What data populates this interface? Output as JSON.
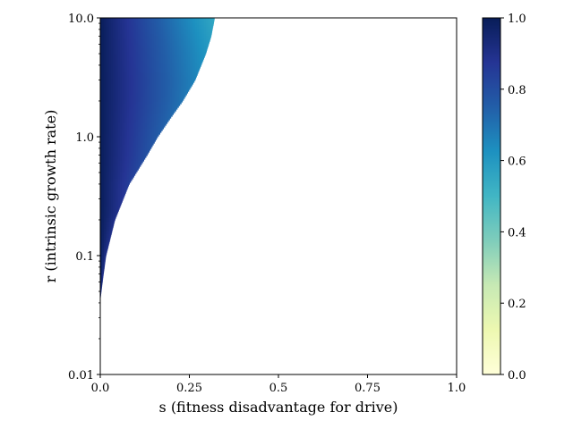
{
  "chart_data": {
    "type": "heatmap",
    "title": "",
    "xlabel": "s (fitness disadvantage for drive)",
    "ylabel": "r (intrinsic growth rate)",
    "xlim": [
      0.0,
      1.0
    ],
    "ylim": [
      0.01,
      10.0
    ],
    "yscale": "log",
    "x_ticks": [
      0.0,
      0.25,
      0.5,
      0.75,
      1.0
    ],
    "x_tick_labels": [
      "0.0",
      "0.25",
      "0.5",
      "0.75",
      "1.0"
    ],
    "y_ticks": [
      0.01,
      0.1,
      1.0,
      10.0
    ],
    "y_tick_labels": [
      "0.01",
      "0.1",
      "1.0",
      "10.0"
    ],
    "grid": false,
    "colormap": "YlGnBu",
    "colorbar": {
      "range": [
        0.0,
        1.0
      ],
      "ticks": [
        0.0,
        0.2,
        0.4,
        0.6,
        0.8,
        1.0
      ],
      "tick_labels": [
        "0.0",
        "0.2",
        "0.4",
        "0.6",
        "0.8",
        "1.0"
      ],
      "placement": "right"
    },
    "colored_region": {
      "description_of_values": "value is highest at s = 0 and decreases toward the boundary; zero region left blank",
      "boundary": [
        {
          "r": 0.045,
          "s": 0.0
        },
        {
          "r": 0.06,
          "s": 0.005
        },
        {
          "r": 0.1,
          "s": 0.015
        },
        {
          "r": 0.2,
          "s": 0.04
        },
        {
          "r": 0.4,
          "s": 0.08
        },
        {
          "r": 0.7,
          "s": 0.13
        },
        {
          "r": 1.0,
          "s": 0.16
        },
        {
          "r": 1.5,
          "s": 0.2
        },
        {
          "r": 2.0,
          "s": 0.23
        },
        {
          "r": 3.0,
          "s": 0.265
        },
        {
          "r": 5.0,
          "s": 0.295
        },
        {
          "r": 7.0,
          "s": 0.31
        },
        {
          "r": 10.0,
          "s": 0.32
        }
      ],
      "edge_value_low_r": 0.9,
      "edge_value_high_r": 0.55,
      "value_at_s0_high_r": 1.0
    }
  }
}
